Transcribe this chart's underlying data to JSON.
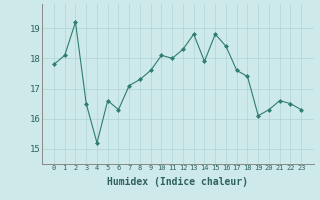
{
  "x": [
    0,
    1,
    2,
    3,
    4,
    5,
    6,
    7,
    8,
    9,
    10,
    11,
    12,
    13,
    14,
    15,
    16,
    17,
    18,
    19,
    20,
    21,
    22,
    23
  ],
  "y": [
    17.8,
    18.1,
    19.2,
    16.5,
    15.2,
    16.6,
    16.3,
    17.1,
    17.3,
    17.6,
    18.1,
    18.0,
    18.3,
    18.8,
    17.9,
    18.8,
    18.4,
    17.6,
    17.4,
    16.1,
    16.3,
    16.6,
    16.5,
    16.3
  ],
  "line_color": "#2e7d6e",
  "marker": "D",
  "marker_size": 2,
  "bg_color": "#cde9e9",
  "grid_color": "#b0d4d4",
  "xlabel": "Humidex (Indice chaleur)",
  "ylim": [
    14.5,
    19.8
  ],
  "yticks": [
    15,
    16,
    17,
    18,
    19
  ],
  "xticks": [
    0,
    1,
    2,
    3,
    4,
    5,
    6,
    7,
    8,
    9,
    10,
    11,
    12,
    13,
    14,
    15,
    16,
    17,
    18,
    19,
    20,
    21,
    22,
    23
  ]
}
